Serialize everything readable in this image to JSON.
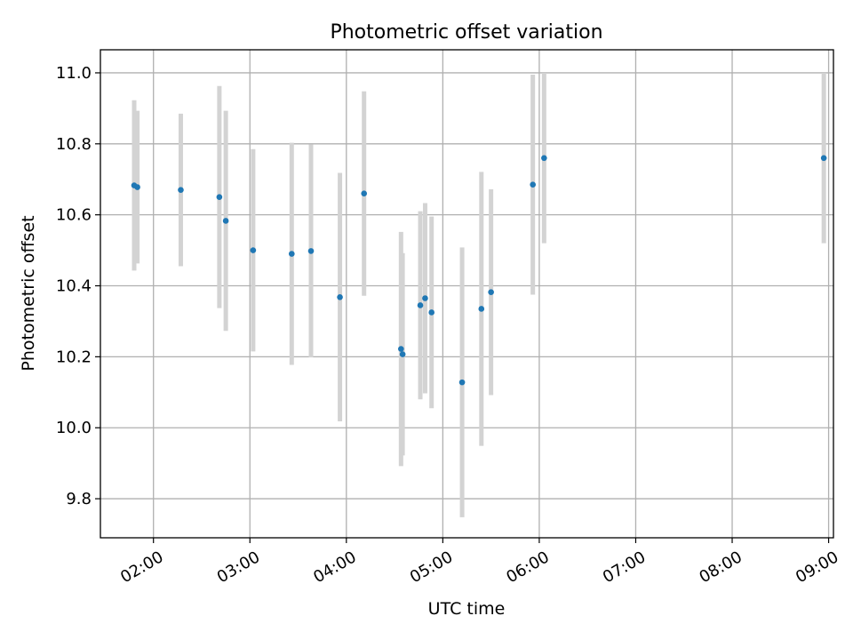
{
  "chart_data": {
    "type": "scatter",
    "title": "Photometric offset variation",
    "xlabel": "UTC time",
    "ylabel": "Photometric offset",
    "x_is_time": true,
    "xlim": [
      "01:27",
      "09:03"
    ],
    "ylim": [
      9.69,
      11.065
    ],
    "x_ticks": [
      "02:00",
      "03:00",
      "04:00",
      "05:00",
      "06:00",
      "07:00",
      "08:00",
      "09:00"
    ],
    "y_ticks": [
      "9.8",
      "10.0",
      "10.2",
      "10.4",
      "10.6",
      "10.8",
      "11.0"
    ],
    "grid": true,
    "colors": {
      "marker": "#1f77b4",
      "errorbar": "#d3d3d3",
      "grid": "#b0b0b0"
    },
    "points": [
      {
        "x": "01:48",
        "y": 10.683,
        "yerr": 0.24
      },
      {
        "x": "01:50",
        "y": 10.678,
        "yerr": 0.215
      },
      {
        "x": "02:17",
        "y": 10.67,
        "yerr": 0.215
      },
      {
        "x": "02:41",
        "y": 10.65,
        "yerr": 0.313
      },
      {
        "x": "02:45",
        "y": 10.583,
        "yerr": 0.31
      },
      {
        "x": "03:02",
        "y": 10.5,
        "yerr": 0.285
      },
      {
        "x": "03:26",
        "y": 10.49,
        "yerr": 0.313
      },
      {
        "x": "03:38",
        "y": 10.498,
        "yerr": 0.3
      },
      {
        "x": "03:56",
        "y": 10.368,
        "yerr": 0.35
      },
      {
        "x": "04:11",
        "y": 10.66,
        "yerr": 0.288
      },
      {
        "x": "04:34",
        "y": 10.222,
        "yerr": 0.33
      },
      {
        "x": "04:35",
        "y": 10.207,
        "yerr": 0.285
      },
      {
        "x": "04:46",
        "y": 10.345,
        "yerr": 0.265
      },
      {
        "x": "04:49",
        "y": 10.365,
        "yerr": 0.268
      },
      {
        "x": "04:53",
        "y": 10.325,
        "yerr": 0.27
      },
      {
        "x": "05:12",
        "y": 10.128,
        "yerr": 0.38
      },
      {
        "x": "05:24",
        "y": 10.335,
        "yerr": 0.386
      },
      {
        "x": "05:30",
        "y": 10.382,
        "yerr": 0.29
      },
      {
        "x": "05:56",
        "y": 10.685,
        "yerr": 0.31
      },
      {
        "x": "06:03",
        "y": 10.76,
        "yerr": 0.24
      },
      {
        "x": "08:57",
        "y": 10.76,
        "yerr": 0.24
      }
    ]
  }
}
